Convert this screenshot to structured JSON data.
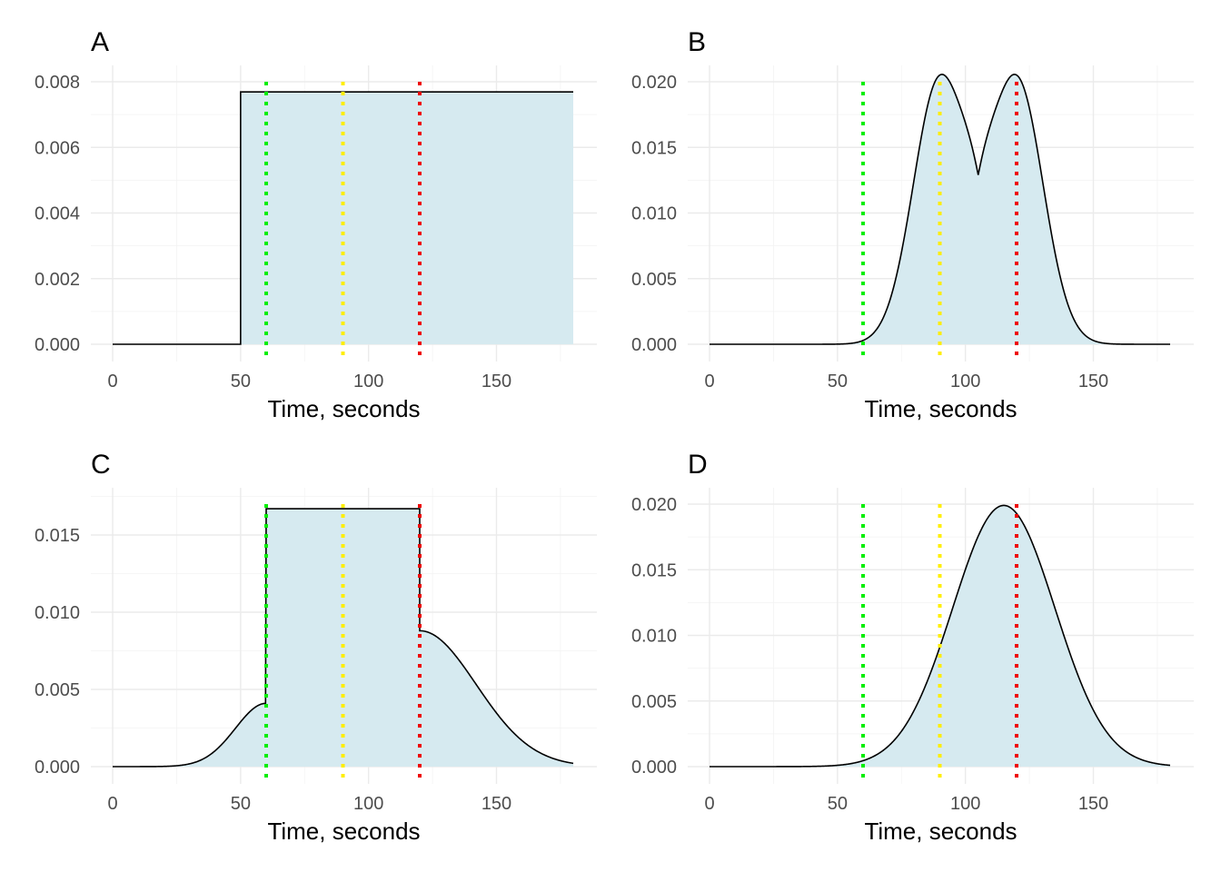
{
  "colors": {
    "fill": "#d6eaf0",
    "line": "#000000",
    "green": "#00ee00",
    "yellow": "#ffee00",
    "red": "#ee0000"
  },
  "chart_data": [
    {
      "panel": "A",
      "type": "area",
      "xlabel": "Time, seconds",
      "xlim": [
        0,
        180
      ],
      "ylim": [
        0,
        0.008
      ],
      "x_ticks": [
        "0",
        "50",
        "100",
        "150"
      ],
      "y_ticks": [
        "0.000",
        "0.002",
        "0.004",
        "0.006",
        "0.008"
      ],
      "shape": "uniform",
      "params": {
        "start": 50,
        "end": 180,
        "height": 0.00769
      },
      "vlines": [
        60,
        90,
        120
      ],
      "grid": true
    },
    {
      "panel": "B",
      "type": "area",
      "xlabel": "Time, seconds",
      "xlim": [
        0,
        180
      ],
      "ylim": [
        0,
        0.02
      ],
      "x_ticks": [
        "0",
        "50",
        "100",
        "150"
      ],
      "y_ticks": [
        "0.000",
        "0.005",
        "0.010",
        "0.015",
        "0.020"
      ],
      "shape": "bimodal",
      "params": {
        "mu1": 90,
        "mu2": 120,
        "sd": 10.3,
        "peak": 0.0202,
        "dip": 0.0129
      },
      "vlines": [
        60,
        90,
        120
      ],
      "grid": true
    },
    {
      "panel": "C",
      "type": "area",
      "xlabel": "Time, seconds",
      "xlim": [
        0,
        180
      ],
      "ylim": [
        0,
        0.017
      ],
      "x_ticks": [
        "0",
        "50",
        "100",
        "150"
      ],
      "y_ticks": [
        "0.000",
        "0.005",
        "0.010",
        "0.015"
      ],
      "shape": "plateau",
      "params": {
        "left": 60,
        "right": 120,
        "height": 0.0167,
        "left_edge": 0.0041,
        "right_edge": 0.0088,
        "sd_left": 12,
        "sd_right": 22
      },
      "vlines": [
        60,
        90,
        120
      ],
      "grid": true
    },
    {
      "panel": "D",
      "type": "area",
      "xlabel": "Time, seconds",
      "xlim": [
        0,
        180
      ],
      "ylim": [
        0,
        0.02
      ],
      "x_ticks": [
        "0",
        "50",
        "100",
        "150"
      ],
      "y_ticks": [
        "0.000",
        "0.005",
        "0.010",
        "0.015",
        "0.020"
      ],
      "shape": "normal",
      "params": {
        "mean": 115,
        "sd": 20,
        "peak": 0.0199
      },
      "vlines": [
        60,
        90,
        120
      ],
      "grid": true
    }
  ]
}
